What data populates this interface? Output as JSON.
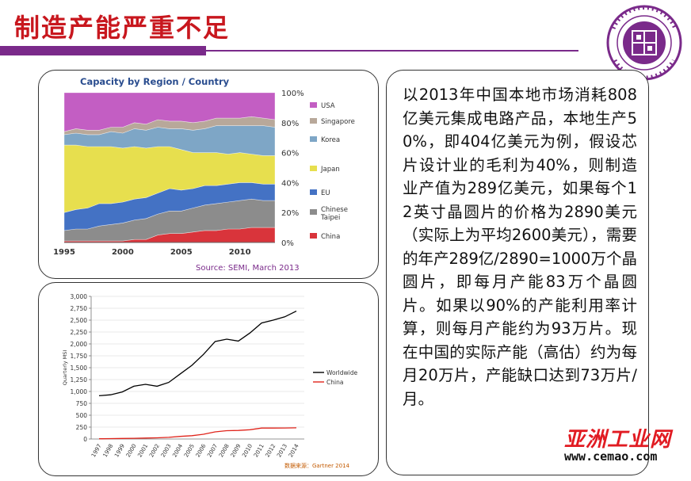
{
  "slide": {
    "title": "制造产能严重不足",
    "paragraph": "以2013年中国本地市场消耗808亿美元集成电路产品，本地生产50%，即404亿美元为例，假设芯片设计业的毛利为40%，则制造业产值为289亿美元，如果每个12英寸晶圆片的价格为2890美元（实际上为平均2600美元），需要的年产289亿/2890=1000万个晶圆片，即每月产能83万个晶圆片。如果以90%的产能利用率计算，则每月产能约为93万片。现在中国的实际产能（高估）约为每月20万片，产能缺口达到73万片/月。",
    "watermark_cn": "亚洲工业网",
    "watermark_url": "www.cemao.com",
    "colors": {
      "title": "#c8171e",
      "bar": "#7a2a8a"
    }
  },
  "chart_data": [
    {
      "type": "area",
      "stacked": true,
      "title": "Capacity by Region / Country",
      "source": "Source: SEMI, March 2013",
      "x": [
        1995,
        1996,
        1997,
        1998,
        1999,
        2000,
        2001,
        2002,
        2003,
        2004,
        2005,
        2006,
        2007,
        2008,
        2009,
        2010,
        2011,
        2012,
        2013
      ],
      "x_ticks": [
        1995,
        2000,
        2005,
        2010
      ],
      "y_ticks": [
        "0%",
        "20%",
        "40%",
        "60%",
        "80%",
        "100%"
      ],
      "ylim": [
        0,
        100
      ],
      "legend_position": "right",
      "series": [
        {
          "name": "China",
          "color": "#d9343b",
          "values": [
            1,
            1,
            1,
            1,
            1,
            1,
            2,
            2,
            5,
            6,
            6,
            7,
            8,
            8,
            9,
            9,
            10,
            10,
            10
          ]
        },
        {
          "name": "Chinese Taipei",
          "color": "#8c8c8c",
          "values": [
            7,
            8,
            8,
            10,
            11,
            12,
            13,
            14,
            14,
            15,
            15,
            16,
            17,
            18,
            18,
            19,
            19,
            18,
            18
          ]
        },
        {
          "name": "EU",
          "color": "#4472c4",
          "values": [
            12,
            13,
            14,
            15,
            14,
            14,
            14,
            14,
            14,
            15,
            14,
            13,
            13,
            12,
            12,
            12,
            11,
            11,
            11
          ]
        },
        {
          "name": "Japan",
          "color": "#e7df4e",
          "values": [
            45,
            43,
            41,
            38,
            38,
            36,
            35,
            33,
            31,
            28,
            27,
            24,
            22,
            22,
            20,
            20,
            19,
            19,
            19
          ]
        },
        {
          "name": "Korea",
          "color": "#7ea6c6",
          "values": [
            7,
            8,
            8,
            8,
            10,
            10,
            12,
            12,
            13,
            12,
            14,
            15,
            16,
            18,
            19,
            18,
            19,
            20,
            19
          ]
        },
        {
          "name": "Singapore",
          "color": "#b8a89a",
          "values": [
            2,
            3,
            3,
            3,
            3,
            4,
            4,
            4,
            5,
            5,
            5,
            5,
            5,
            5,
            5,
            5,
            6,
            5,
            5
          ]
        },
        {
          "name": "USA",
          "color": "#c35ec3",
          "values": [
            26,
            24,
            25,
            25,
            23,
            23,
            20,
            21,
            18,
            19,
            19,
            20,
            19,
            17,
            17,
            17,
            16,
            17,
            18
          ]
        }
      ]
    },
    {
      "type": "line",
      "ylabel": "Quarterly MSI",
      "source": "数据来源：Gartner 2014",
      "categories": [
        "1997",
        "1998",
        "1999",
        "2000",
        "2001",
        "2002",
        "2003",
        "2004",
        "2005",
        "2006",
        "2007",
        "2008",
        "2009",
        "2010",
        "2011",
        "2012",
        "2013",
        "2014"
      ],
      "y_ticks": [
        "0",
        "250",
        "500",
        "750",
        "1,000",
        "1,250",
        "1,500",
        "1,750",
        "2,000",
        "2,250",
        "2,500",
        "2,750",
        "3,000"
      ],
      "ylim": [
        0,
        3000
      ],
      "legend_position": "right",
      "series": [
        {
          "name": "Worldwide",
          "color": "#000000",
          "values": [
            910,
            930,
            990,
            1110,
            1150,
            1110,
            1190,
            1370,
            1550,
            1780,
            2050,
            2100,
            2060,
            2230,
            2440,
            2500,
            2570,
            2690
          ]
        },
        {
          "name": "China",
          "color": "#e0241b",
          "values": [
            5,
            8,
            12,
            15,
            20,
            25,
            35,
            55,
            70,
            100,
            150,
            175,
            180,
            195,
            230,
            230,
            232,
            235
          ]
        }
      ]
    }
  ]
}
